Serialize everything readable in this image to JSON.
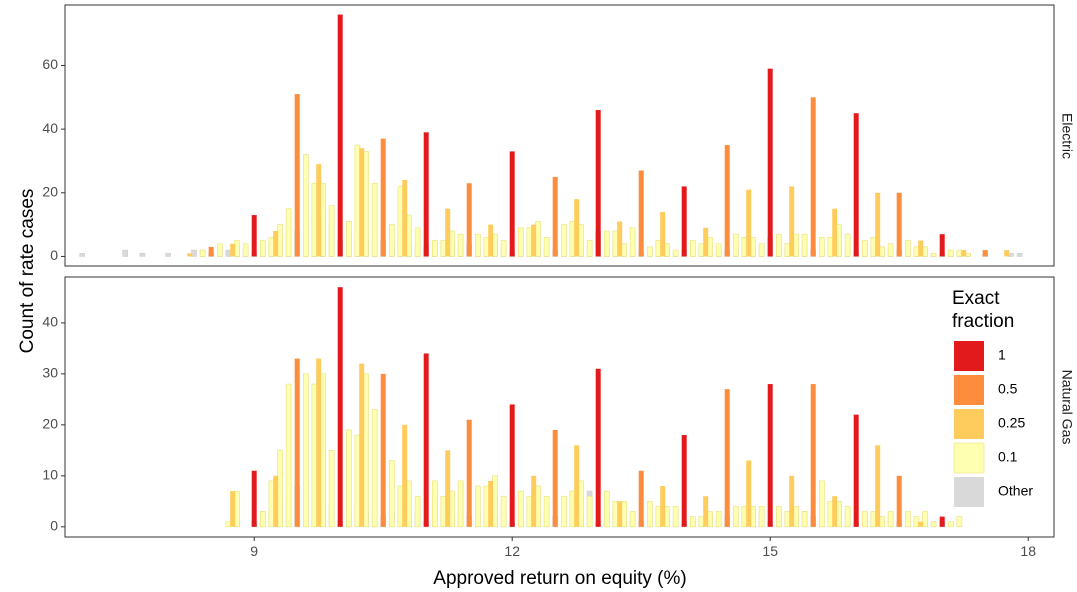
{
  "chart_data": {
    "type": "bar",
    "xlabel": "Approved return on equity (%)",
    "ylabel": "Count of rate cases",
    "x_ticks": [
      9,
      12,
      15,
      18
    ],
    "xlim": [
      6.8,
      18.3
    ],
    "legend": {
      "title_lines": [
        "Exact",
        "fraction"
      ],
      "entries": [
        {
          "label": "1",
          "color": "#E31A1C"
        },
        {
          "label": "0.5",
          "color": "#FD8D3C"
        },
        {
          "label": "0.25",
          "color": "#FECC5C"
        },
        {
          "label": "0.1",
          "color": "#FFFFB2"
        },
        {
          "label": "Other",
          "color": "#D9D9D9"
        }
      ]
    },
    "panels": [
      {
        "label": "Electric",
        "ylim": [
          -3,
          79
        ],
        "y_ticks": [
          0,
          20,
          40,
          60
        ],
        "categories": {
          "1": {
            "x": [
              9,
              10,
              11,
              12,
              13,
              14,
              15,
              16,
              17
            ],
            "y": [
              13,
              76,
              39,
              33,
              46,
              22,
              59,
              45,
              7
            ]
          },
          "0.5": {
            "x": [
              8.5,
              9.5,
              10.5,
              11.5,
              12.5,
              13.5,
              14.5,
              15.5,
              16.5,
              17.5
            ],
            "y": [
              3,
              51,
              37,
              23,
              25,
              27,
              35,
              50,
              20,
              2
            ]
          },
          "0.25": {
            "x": [
              8.25,
              8.75,
              9.25,
              9.75,
              10.25,
              10.75,
              11.25,
              11.75,
              12.25,
              12.75,
              13.25,
              13.75,
              14.25,
              14.75,
              15.25,
              15.75,
              16.25,
              16.75,
              17.25,
              17.75
            ],
            "y": [
              1,
              4,
              8,
              29,
              34,
              24,
              15,
              10,
              10,
              18,
              11,
              14,
              9,
              21,
              22,
              15,
              20,
              5,
              2,
              2
            ]
          },
          "0.1": {
            "x": [
              8.4,
              8.6,
              8.8,
              8.9,
              9.1,
              9.2,
              9.3,
              9.4,
              9.6,
              9.7,
              9.8,
              9.9,
              10.1,
              10.2,
              10.3,
              10.4,
              10.6,
              10.7,
              10.8,
              10.9,
              11.1,
              11.2,
              11.3,
              11.4,
              11.6,
              11.7,
              11.8,
              11.9,
              12.1,
              12.2,
              12.3,
              12.4,
              12.6,
              12.7,
              12.8,
              12.9,
              13.1,
              13.2,
              13.3,
              13.4,
              13.6,
              13.7,
              13.8,
              13.9,
              14.1,
              14.2,
              14.3,
              14.4,
              14.6,
              14.7,
              14.8,
              14.9,
              15.1,
              15.2,
              15.3,
              15.4,
              15.6,
              15.7,
              15.8,
              15.9,
              16.1,
              16.2,
              16.3,
              16.4,
              16.6,
              16.7,
              16.8,
              16.9,
              17.1,
              17.2,
              17.3
            ],
            "y": [
              2,
              4,
              5,
              4,
              5,
              6,
              10,
              15,
              32,
              23,
              23,
              16,
              11,
              35,
              33,
              23,
              10,
              22,
              13,
              9,
              5,
              5,
              8,
              7,
              7,
              6,
              7,
              5,
              9,
              9,
              11,
              6,
              10,
              11,
              10,
              5,
              8,
              8,
              4,
              9,
              3,
              5,
              4,
              2,
              5,
              4,
              6,
              4,
              7,
              6,
              6,
              4,
              7,
              4,
              7,
              7,
              6,
              6,
              10,
              7,
              5,
              6,
              3,
              4,
              5,
              3,
              3,
              1,
              2,
              2,
              1
            ]
          },
          "Other": {
            "x": [
              7.0,
              7.5,
              7.7,
              8.0,
              8.3,
              8.4,
              8.5,
              8.6,
              8.7,
              8.8,
              8.9,
              9.0,
              9.1,
              9.2,
              9.3,
              9.4,
              9.5,
              9.6,
              9.7,
              9.8,
              9.9,
              10.0,
              10.1,
              10.2,
              10.3,
              10.4,
              10.5,
              10.6,
              10.7,
              10.8,
              10.9,
              11.0,
              11.1,
              11.2,
              11.3,
              11.4,
              11.5,
              11.6,
              11.7,
              11.8,
              11.9,
              12.0,
              12.1,
              12.2,
              12.3,
              12.4,
              12.5,
              12.6,
              12.7,
              12.8,
              12.9,
              13.0,
              13.1,
              13.2,
              13.3,
              13.4,
              13.5,
              13.6,
              13.7,
              13.8,
              13.9,
              14.0,
              14.1,
              14.2,
              14.3,
              14.4,
              14.5,
              14.6,
              14.7,
              14.8,
              14.9,
              15.0,
              15.1,
              15.2,
              15.3,
              15.4,
              15.5,
              15.6,
              15.7,
              15.8,
              15.9,
              16.0,
              16.1,
              16.2,
              16.3,
              16.4,
              16.5,
              16.6,
              16.7,
              16.8,
              16.9,
              17.0,
              17.1,
              17.2,
              17.3,
              17.5,
              17.8,
              17.9
            ],
            "y": [
              1,
              2,
              1,
              1,
              2,
              2,
              1,
              3,
              2,
              3,
              2,
              1,
              3,
              4,
              5,
              7,
              8,
              10,
              12,
              14,
              10,
              5,
              8,
              6,
              5,
              6,
              5,
              4,
              5,
              4,
              3,
              3,
              4,
              3,
              4,
              3,
              4,
              3,
              3,
              2,
              3,
              2,
              3,
              2,
              3,
              2,
              2,
              2,
              3,
              2,
              2,
              8,
              2,
              2,
              1,
              2,
              1,
              2,
              1,
              2,
              1,
              2,
              1,
              2,
              1,
              2,
              2,
              3,
              2,
              2,
              3,
              6,
              2,
              3,
              2,
              3,
              2,
              3,
              2,
              3,
              2,
              2,
              4,
              3,
              2,
              2,
              2,
              2,
              1,
              2,
              1,
              1,
              1,
              1,
              1,
              1,
              1,
              1
            ]
          }
        }
      },
      {
        "label": "Natural Gas",
        "ylim": [
          -2,
          49
        ],
        "y_ticks": [
          0,
          10,
          20,
          30,
          40
        ],
        "categories": {
          "1": {
            "x": [
              9,
              10,
              11,
              12,
              13,
              14,
              15,
              16,
              17
            ],
            "y": [
              11,
              47,
              34,
              24,
              31,
              18,
              28,
              22,
              2
            ]
          },
          "0.5": {
            "x": [
              9.5,
              10.5,
              11.5,
              12.5,
              13.5,
              14.5,
              15.5,
              16.5
            ],
            "y": [
              33,
              30,
              21,
              19,
              11,
              27,
              28,
              10
            ]
          },
          "0.25": {
            "x": [
              8.75,
              9.25,
              9.75,
              10.25,
              10.75,
              11.25,
              11.75,
              12.25,
              12.75,
              13.25,
              13.75,
              14.25,
              14.75,
              15.25,
              15.75,
              16.25,
              16.75
            ],
            "y": [
              7,
              10,
              33,
              32,
              20,
              15,
              9,
              10,
              16,
              5,
              8,
              6,
              13,
              10,
              6,
              16,
              1
            ]
          },
          "0.1": {
            "x": [
              8.7,
              8.8,
              9.1,
              9.2,
              9.3,
              9.4,
              9.6,
              9.7,
              9.8,
              9.9,
              10.1,
              10.2,
              10.3,
              10.4,
              10.6,
              10.7,
              10.8,
              10.9,
              11.1,
              11.2,
              11.3,
              11.4,
              11.6,
              11.7,
              11.8,
              11.9,
              12.1,
              12.2,
              12.3,
              12.4,
              12.6,
              12.7,
              12.8,
              12.9,
              13.1,
              13.2,
              13.3,
              13.4,
              13.6,
              13.7,
              13.8,
              13.9,
              14.1,
              14.2,
              14.3,
              14.4,
              14.6,
              14.7,
              14.8,
              14.9,
              15.1,
              15.2,
              15.3,
              15.4,
              15.6,
              15.7,
              15.8,
              15.9,
              16.1,
              16.2,
              16.3,
              16.4,
              16.6,
              16.7,
              16.8,
              16.9,
              17.1,
              17.2
            ],
            "y": [
              1,
              7,
              3,
              9,
              15,
              28,
              30,
              28,
              30,
              15,
              19,
              18,
              30,
              23,
              13,
              8,
              9,
              6,
              9,
              6,
              7,
              9,
              8,
              8,
              10,
              6,
              7,
              6,
              8,
              6,
              6,
              7,
              9,
              6,
              7,
              5,
              5,
              3,
              5,
              4,
              4,
              4,
              2,
              2,
              3,
              3,
              4,
              4,
              4,
              4,
              4,
              3,
              4,
              3,
              9,
              5,
              5,
              4,
              3,
              3,
              2,
              3,
              3,
              2,
              3,
              1,
              1,
              2
            ]
          },
          "Other": {
            "x": [
              8.8,
              9.0,
              9.1,
              9.2,
              9.3,
              9.4,
              9.5,
              9.6,
              9.7,
              9.8,
              9.9,
              10.0,
              10.1,
              10.2,
              10.3,
              10.4,
              10.5,
              10.6,
              10.7,
              10.8,
              10.9,
              11.0,
              11.1,
              11.2,
              11.3,
              11.4,
              11.5,
              11.6,
              11.7,
              11.8,
              11.9,
              12.0,
              12.1,
              12.2,
              12.3,
              12.4,
              12.5,
              12.6,
              12.7,
              12.8,
              12.9,
              13.0,
              13.1,
              13.2,
              13.3,
              13.4,
              13.5,
              13.6,
              13.7,
              13.8,
              13.9,
              14.0,
              14.1,
              14.2,
              14.3,
              14.4,
              14.5,
              14.6,
              14.7,
              14.8,
              14.9,
              15.0,
              15.1,
              15.2,
              15.3,
              15.4,
              15.5,
              15.6,
              15.7,
              15.8,
              15.9,
              16.0,
              16.1,
              16.2,
              16.3,
              16.4,
              16.5,
              16.6,
              16.7,
              16.8,
              16.9,
              17.0
            ],
            "y": [
              1,
              1,
              3,
              3,
              4,
              6,
              8,
              8,
              7,
              5,
              4,
              1,
              3,
              4,
              3,
              4,
              2,
              3,
              3,
              2,
              3,
              1,
              4,
              2,
              2,
              3,
              2,
              3,
              3,
              2,
              3,
              1,
              3,
              4,
              2,
              3,
              2,
              2,
              3,
              2,
              7,
              1,
              2,
              2,
              1,
              2,
              1,
              2,
              1,
              1,
              1,
              1,
              1,
              1,
              2,
              2,
              2,
              2,
              3,
              3,
              3,
              1,
              3,
              2,
              2,
              3,
              2,
              2,
              3,
              4,
              3,
              1,
              2,
              2,
              1,
              2,
              1,
              1,
              1,
              1,
              1,
              1
            ]
          }
        }
      }
    ]
  }
}
